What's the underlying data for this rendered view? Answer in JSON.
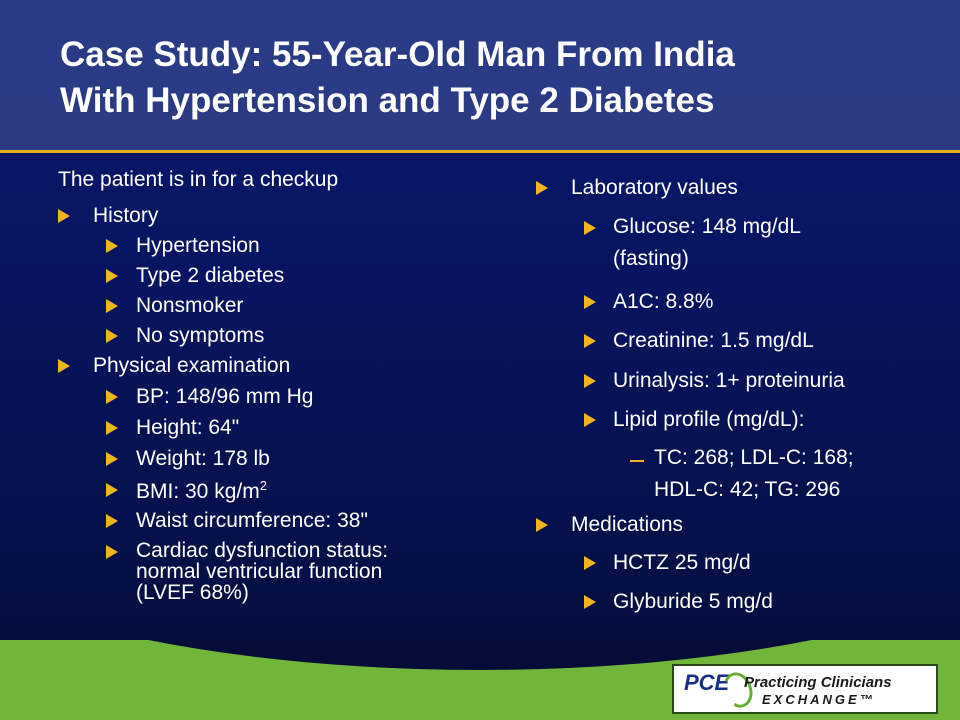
{
  "title": {
    "line1": "Case Study: 55-Year-Old Man From India",
    "line2": "With Hypertension and Type 2 Diabetes"
  },
  "left": {
    "intro": "The patient is in for a checkup",
    "history": {
      "label": "History",
      "items": [
        "Hypertension",
        "Type 2 diabetes",
        "Nonsmoker",
        "No symptoms"
      ]
    },
    "exam": {
      "label": "Physical examination",
      "bp": "BP: 148/96 mm Hg",
      "height": "Height: 64\"",
      "weight": "Weight: 178 lb",
      "bmi": "BMI: 30 kg/m",
      "bmi_sup": "2",
      "waist": "Waist circumference: 38\"",
      "cardiac_1": "Cardiac dysfunction status:",
      "cardiac_2": "normal ventricular function",
      "cardiac_3": "(LVEF 68%)"
    }
  },
  "right": {
    "labs": {
      "label": "Laboratory values",
      "glucose_1": "Glucose: 148 mg/dL",
      "glucose_2": "(fasting)",
      "a1c": "A1C: 8.8%",
      "creatinine": "Creatinine: 1.5 mg/dL",
      "urinalysis": "Urinalysis: 1+ proteinuria",
      "lipid": "Lipid profile (mg/dL):",
      "lipid_detail_1": "TC: 268; LDL-C: 168;",
      "lipid_detail_2": "HDL-C: 42; TG: 296"
    },
    "meds": {
      "label": "Medications",
      "items": [
        "HCTZ 25 mg/d",
        "Glyburide 5 mg/d"
      ]
    }
  },
  "logo": {
    "mark": "PCE",
    "top": "Practicing Clinicians",
    "bottom": "EXCHANGE™"
  },
  "colors": {
    "bullet": "#f0b41e",
    "header": "#2b3a82",
    "rule": "#e8b21a",
    "green": "#71b53a"
  }
}
